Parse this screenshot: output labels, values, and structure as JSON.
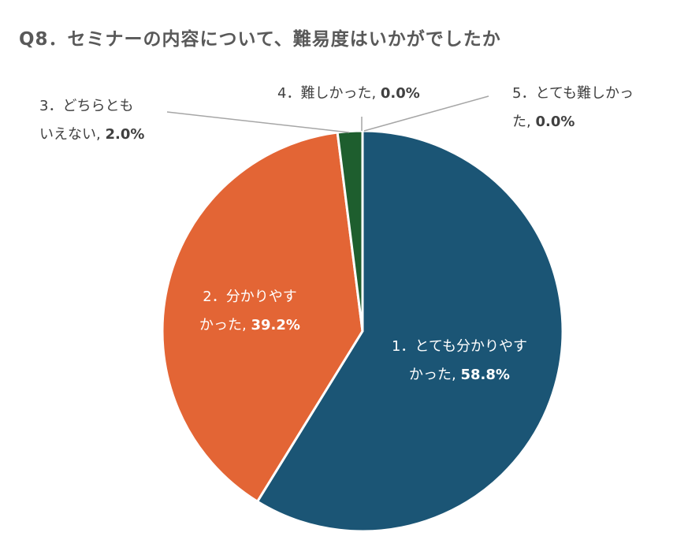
{
  "chart_data": {
    "type": "pie",
    "title": "Q8．セミナーの内容について、難易度はいかがでしたか",
    "slices": [
      {
        "category_lines": [
          "1．とても分かりやす",
          "かった"
        ],
        "value_label": "58.8%",
        "value": 58.8,
        "color": "#1b5575"
      },
      {
        "category_lines": [
          "2．分かりやす",
          "かった"
        ],
        "value_label": "39.2%",
        "value": 39.2,
        "color": "#e36535"
      },
      {
        "category_lines": [
          "3．どちらとも",
          "いえない"
        ],
        "value_label": "2.0%",
        "value": 2.0,
        "color": "#1e5e2e"
      },
      {
        "category_lines": [
          "4．難しかった"
        ],
        "value_label": "0.0%",
        "value": 0.0,
        "color": "#7f7f7f"
      },
      {
        "category_lines": [
          "5．とても難しかっ",
          "た"
        ],
        "value_label": "0.0%",
        "value": 0.0,
        "color": "#a5a5a5"
      }
    ],
    "legend": "none"
  }
}
